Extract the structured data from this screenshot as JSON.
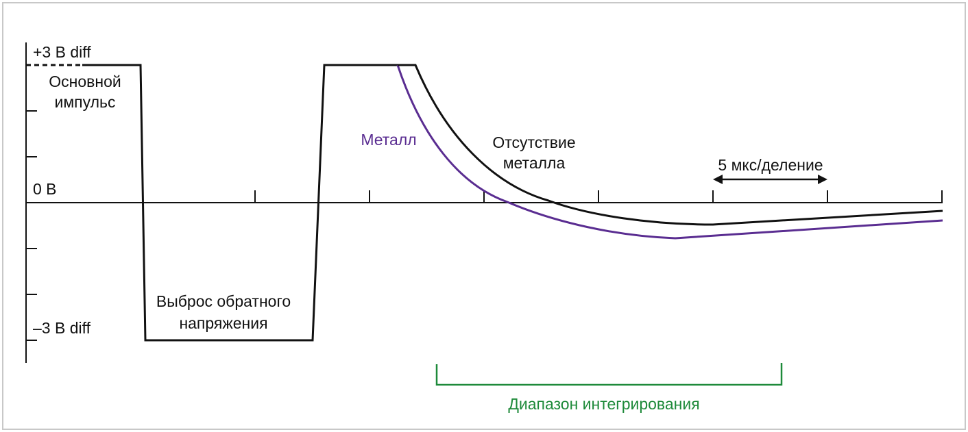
{
  "labels": {
    "plus_level": "+3 В diff",
    "main_pulse": [
      "Основной",
      "импульс"
    ],
    "zero_level": "0 В",
    "minus_level": "–3 В diff",
    "flyback": [
      "Выброс обратного",
      "напряжения"
    ],
    "metal": "Металл",
    "no_metal": [
      "Отсутствие",
      "металла"
    ],
    "time_scale": "5 мкс/деление",
    "integration_range": "Диапазон интегрирования"
  }
}
